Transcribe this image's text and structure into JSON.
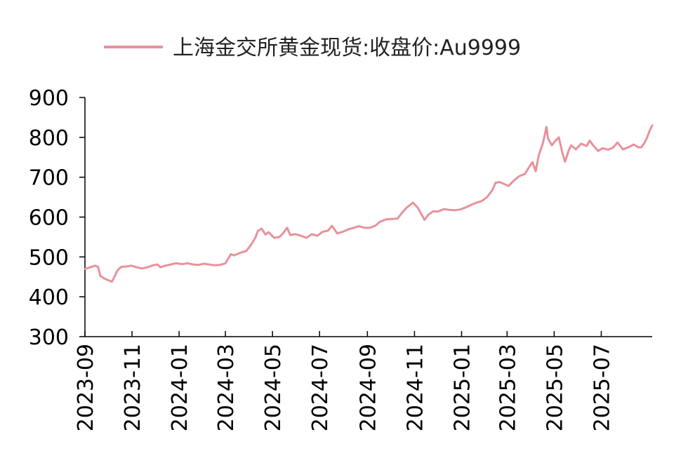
{
  "chart_data": {
    "type": "line",
    "title": "",
    "xlabel": "",
    "ylabel": "",
    "legend_position": "top",
    "grid": false,
    "ylim": [
      300,
      900
    ],
    "yticks": [
      300,
      400,
      500,
      600,
      700,
      800,
      900
    ],
    "xlim": [
      "2023-09-01",
      "2025-09-05"
    ],
    "xticks": [
      "2023-09",
      "2023-11",
      "2024-01",
      "2024-03",
      "2024-05",
      "2024-07",
      "2024-09",
      "2024-11",
      "2025-01",
      "2025-03",
      "2025-05",
      "2025-07"
    ],
    "series": [
      {
        "name": "上海金交所黄金现货:收盘价:Au9999",
        "color": "#E8929A",
        "points": [
          [
            "2023-09-01",
            470
          ],
          [
            "2023-09-08",
            474
          ],
          [
            "2023-09-14",
            478
          ],
          [
            "2023-09-18",
            475
          ],
          [
            "2023-09-21",
            452
          ],
          [
            "2023-09-27",
            445
          ],
          [
            "2023-10-03",
            440
          ],
          [
            "2023-10-06",
            438
          ],
          [
            "2023-10-10",
            453
          ],
          [
            "2023-10-13",
            466
          ],
          [
            "2023-10-18",
            475
          ],
          [
            "2023-10-24",
            476
          ],
          [
            "2023-10-31",
            478
          ],
          [
            "2023-11-07",
            474
          ],
          [
            "2023-11-14",
            471
          ],
          [
            "2023-11-21",
            474
          ],
          [
            "2023-11-28",
            479
          ],
          [
            "2023-12-04",
            481
          ],
          [
            "2023-12-08",
            474
          ],
          [
            "2023-12-14",
            478
          ],
          [
            "2023-12-21",
            481
          ],
          [
            "2023-12-28",
            484
          ],
          [
            "2024-01-05",
            482
          ],
          [
            "2024-01-12",
            484
          ],
          [
            "2024-01-19",
            481
          ],
          [
            "2024-01-26",
            480
          ],
          [
            "2024-02-02",
            483
          ],
          [
            "2024-02-09",
            481
          ],
          [
            "2024-02-16",
            479
          ],
          [
            "2024-02-23",
            480
          ],
          [
            "2024-03-01",
            484
          ],
          [
            "2024-03-05",
            497
          ],
          [
            "2024-03-08",
            507
          ],
          [
            "2024-03-12",
            504
          ],
          [
            "2024-03-20",
            510
          ],
          [
            "2024-03-28",
            515
          ],
          [
            "2024-04-03",
            530
          ],
          [
            "2024-04-09",
            549
          ],
          [
            "2024-04-12",
            565
          ],
          [
            "2024-04-17",
            571
          ],
          [
            "2024-04-22",
            556
          ],
          [
            "2024-04-26",
            562
          ],
          [
            "2024-05-03",
            548
          ],
          [
            "2024-05-10",
            550
          ],
          [
            "2024-05-15",
            560
          ],
          [
            "2024-05-20",
            573
          ],
          [
            "2024-05-24",
            555
          ],
          [
            "2024-05-31",
            557
          ],
          [
            "2024-06-07",
            553
          ],
          [
            "2024-06-14",
            548
          ],
          [
            "2024-06-21",
            557
          ],
          [
            "2024-06-28",
            553
          ],
          [
            "2024-07-05",
            563
          ],
          [
            "2024-07-12",
            566
          ],
          [
            "2024-07-17",
            578
          ],
          [
            "2024-07-24",
            559
          ],
          [
            "2024-07-31",
            563
          ],
          [
            "2024-08-07",
            569
          ],
          [
            "2024-08-14",
            573
          ],
          [
            "2024-08-21",
            577
          ],
          [
            "2024-08-28",
            573
          ],
          [
            "2024-09-04",
            573
          ],
          [
            "2024-09-11",
            578
          ],
          [
            "2024-09-18",
            589
          ],
          [
            "2024-09-25",
            594
          ],
          [
            "2024-10-02",
            595
          ],
          [
            "2024-10-10",
            596
          ],
          [
            "2024-10-16",
            611
          ],
          [
            "2024-10-22",
            624
          ],
          [
            "2024-10-30",
            636
          ],
          [
            "2024-11-05",
            624
          ],
          [
            "2024-11-10",
            607
          ],
          [
            "2024-11-14",
            593
          ],
          [
            "2024-11-19",
            606
          ],
          [
            "2024-11-25",
            614
          ],
          [
            "2024-12-02",
            614
          ],
          [
            "2024-12-09",
            620
          ],
          [
            "2024-12-16",
            618
          ],
          [
            "2024-12-23",
            617
          ],
          [
            "2024-12-30",
            619
          ],
          [
            "2025-01-06",
            624
          ],
          [
            "2025-01-13",
            630
          ],
          [
            "2025-01-20",
            636
          ],
          [
            "2025-01-27",
            640
          ],
          [
            "2025-02-03",
            650
          ],
          [
            "2025-02-10",
            668
          ],
          [
            "2025-02-14",
            686
          ],
          [
            "2025-02-19",
            688
          ],
          [
            "2025-02-24",
            684
          ],
          [
            "2025-03-03",
            678
          ],
          [
            "2025-03-10",
            692
          ],
          [
            "2025-03-17",
            703
          ],
          [
            "2025-03-24",
            708
          ],
          [
            "2025-03-31",
            730
          ],
          [
            "2025-04-03",
            738
          ],
          [
            "2025-04-07",
            715
          ],
          [
            "2025-04-11",
            755
          ],
          [
            "2025-04-16",
            783
          ],
          [
            "2025-04-18",
            799
          ],
          [
            "2025-04-21",
            826
          ],
          [
            "2025-04-23",
            797
          ],
          [
            "2025-04-28",
            780
          ],
          [
            "2025-05-02",
            790
          ],
          [
            "2025-05-07",
            800
          ],
          [
            "2025-05-12",
            758
          ],
          [
            "2025-05-15",
            739
          ],
          [
            "2025-05-20",
            768
          ],
          [
            "2025-05-23",
            780
          ],
          [
            "2025-05-29",
            770
          ],
          [
            "2025-06-05",
            784
          ],
          [
            "2025-06-12",
            778
          ],
          [
            "2025-06-16",
            792
          ],
          [
            "2025-06-20",
            781
          ],
          [
            "2025-06-27",
            766
          ],
          [
            "2025-07-03",
            773
          ],
          [
            "2025-07-10",
            769
          ],
          [
            "2025-07-16",
            774
          ],
          [
            "2025-07-22",
            787
          ],
          [
            "2025-07-29",
            770
          ],
          [
            "2025-08-05",
            775
          ],
          [
            "2025-08-12",
            782
          ],
          [
            "2025-08-18",
            775
          ],
          [
            "2025-08-22",
            775
          ],
          [
            "2025-08-26",
            786
          ],
          [
            "2025-08-29",
            798
          ],
          [
            "2025-09-02",
            818
          ],
          [
            "2025-09-05",
            830
          ]
        ]
      }
    ]
  }
}
